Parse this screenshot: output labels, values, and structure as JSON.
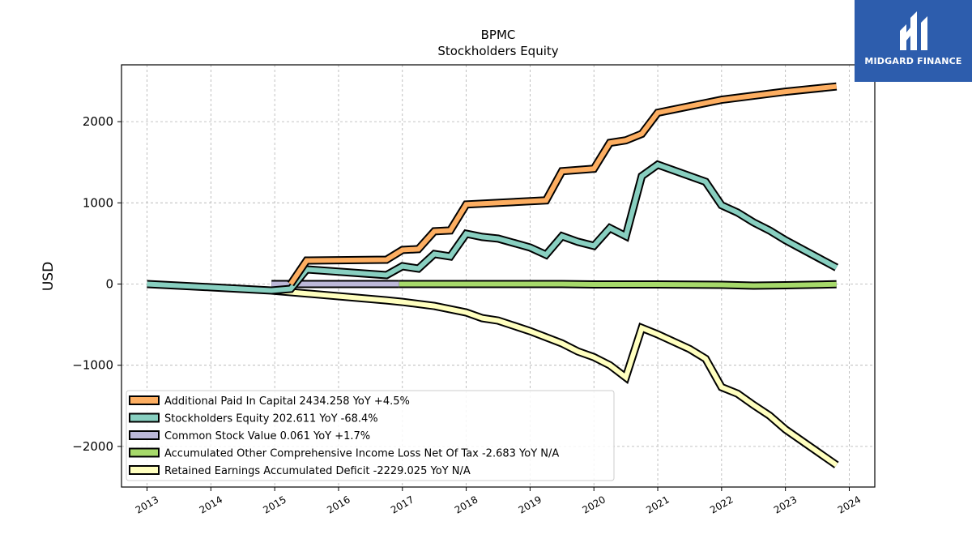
{
  "brand": {
    "name": "MIDGARD FINANCE",
    "color": "#2d5dad"
  },
  "chart_data": {
    "type": "line",
    "title": "BPMC",
    "subtitle": "Stockholders  Equity",
    "xlabel": "",
    "ylabel": "USD",
    "xlim": [
      2012.6,
      2024.4
    ],
    "ylim": [
      -2500,
      2700
    ],
    "x_ticks": [
      "2013",
      "2014",
      "2015",
      "2016",
      "2017",
      "2018",
      "2019",
      "2020",
      "2021",
      "2022",
      "2023",
      "2024"
    ],
    "y_ticks": [
      2000,
      1000,
      0,
      -1000,
      -2000
    ],
    "y_tick_labels": [
      "2000",
      "1000",
      "0",
      "−1000",
      "−2000"
    ],
    "grid": true,
    "legend_position": "lower-left",
    "series": [
      {
        "name": "Additional Paid In Capital  2434.258 YoY +4.5%",
        "color": "#fdae61",
        "points": [
          [
            2015.25,
            0
          ],
          [
            2015.5,
            290
          ],
          [
            2016.75,
            300
          ],
          [
            2017.0,
            420
          ],
          [
            2017.25,
            430
          ],
          [
            2017.5,
            650
          ],
          [
            2017.75,
            660
          ],
          [
            2018.0,
            980
          ],
          [
            2019.25,
            1030
          ],
          [
            2019.5,
            1390
          ],
          [
            2020.0,
            1420
          ],
          [
            2020.25,
            1740
          ],
          [
            2020.5,
            1770
          ],
          [
            2020.75,
            1850
          ],
          [
            2021.0,
            2110
          ],
          [
            2021.75,
            2230
          ],
          [
            2022.0,
            2270
          ],
          [
            2023.0,
            2370
          ],
          [
            2023.8,
            2434
          ]
        ]
      },
      {
        "name": "Stockholders Equity  202.611 YoY -68.4%",
        "color": "#88cfc0",
        "points": [
          [
            2013.0,
            0
          ],
          [
            2014.0,
            -40
          ],
          [
            2014.95,
            -80
          ],
          [
            2015.25,
            -60
          ],
          [
            2015.5,
            180
          ],
          [
            2016.75,
            110
          ],
          [
            2017.0,
            220
          ],
          [
            2017.25,
            190
          ],
          [
            2017.5,
            370
          ],
          [
            2017.75,
            340
          ],
          [
            2018.0,
            620
          ],
          [
            2018.25,
            580
          ],
          [
            2018.5,
            560
          ],
          [
            2019.0,
            450
          ],
          [
            2019.25,
            360
          ],
          [
            2019.5,
            590
          ],
          [
            2019.75,
            520
          ],
          [
            2020.0,
            470
          ],
          [
            2020.25,
            690
          ],
          [
            2020.5,
            590
          ],
          [
            2020.75,
            1330
          ],
          [
            2021.0,
            1470
          ],
          [
            2021.75,
            1260
          ],
          [
            2022.0,
            970
          ],
          [
            2022.25,
            880
          ],
          [
            2022.5,
            760
          ],
          [
            2022.75,
            660
          ],
          [
            2023.0,
            540
          ],
          [
            2023.8,
            203
          ]
        ]
      },
      {
        "name": "Common Stock Value  0.061 YoY +1.7%",
        "color": "#bcb8d8",
        "points": [
          [
            2014.95,
            0
          ],
          [
            2016.95,
            0
          ]
        ]
      },
      {
        "name": "Accumulated Other Comprehensive Income Loss Net Of Tax  -2.683 YoY N/A",
        "color": "#a6d96a",
        "points": [
          [
            2016.95,
            0
          ],
          [
            2019.5,
            0
          ],
          [
            2020.0,
            -5
          ],
          [
            2021.0,
            -5
          ],
          [
            2022.0,
            -10
          ],
          [
            2022.5,
            -20
          ],
          [
            2023.0,
            -15
          ],
          [
            2023.8,
            -3
          ]
        ]
      },
      {
        "name": "Retained Earnings Accumulated Deficit  -2229.025 YoY N/A",
        "color": "#ffffbf",
        "points": [
          [
            2014.95,
            -80
          ],
          [
            2016.75,
            -200
          ],
          [
            2017.0,
            -220
          ],
          [
            2017.5,
            -270
          ],
          [
            2018.0,
            -350
          ],
          [
            2018.25,
            -420
          ],
          [
            2018.5,
            -450
          ],
          [
            2019.0,
            -580
          ],
          [
            2019.5,
            -730
          ],
          [
            2019.75,
            -830
          ],
          [
            2020.0,
            -900
          ],
          [
            2020.25,
            -1000
          ],
          [
            2020.5,
            -1150
          ],
          [
            2020.75,
            -540
          ],
          [
            2021.0,
            -620
          ],
          [
            2021.5,
            -800
          ],
          [
            2021.75,
            -920
          ],
          [
            2022.0,
            -1270
          ],
          [
            2022.25,
            -1350
          ],
          [
            2022.5,
            -1490
          ],
          [
            2022.75,
            -1620
          ],
          [
            2023.0,
            -1790
          ],
          [
            2023.8,
            -2229
          ]
        ]
      }
    ]
  }
}
